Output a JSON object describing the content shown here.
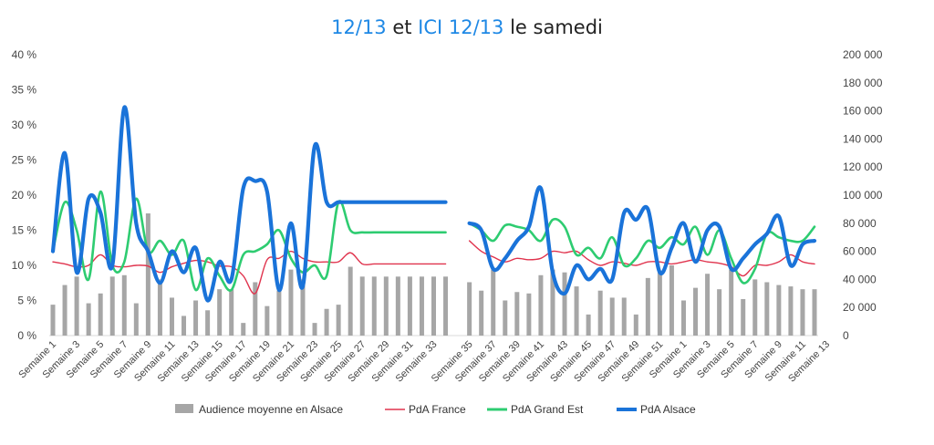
{
  "title": {
    "part1": "12/13",
    "part2": " et ",
    "part3": "ICI 12/13",
    "part4": " le samedi"
  },
  "chart_data": {
    "type": "bar+line",
    "title": "12/13 et ICI 12/13 le samedi",
    "y_left": {
      "ticks": [
        "0 %",
        "5 %",
        "10 %",
        "15 %",
        "20 %",
        "25 %",
        "30 %",
        "35 %",
        "40 %"
      ],
      "range": [
        0,
        40
      ]
    },
    "y_right": {
      "ticks": [
        "0",
        "20 000",
        "40 000",
        "60 000",
        "80 000",
        "100 000",
        "120 000",
        "140 000",
        "160 000",
        "180 000",
        "200 000"
      ],
      "range": [
        0,
        200000
      ]
    },
    "x_labels": [
      "Semaine 1",
      "Semaine 3",
      "Semaine 5",
      "Semaine 7",
      "Semaine 9",
      "Semaine 11",
      "Semaine 13",
      "Semaine 15",
      "Semaine 17",
      "Semaine 19",
      "Semaine 21",
      "Semaine 23",
      "Semaine 25",
      "Semaine 27",
      "Semaine 29",
      "Semaine 31",
      "Semaine 33",
      "Semaine 35",
      "Semaine 37",
      "Semaine 39",
      "Semaine 41",
      "Semaine 43",
      "Semaine 45",
      "Semaine 47",
      "Semaine 49",
      "Semaine 51",
      "Semaine 1",
      "Semaine 3",
      "Semaine 5",
      "Semaine 7",
      "Semaine 9",
      "Semaine 11",
      "Semaine 13"
    ],
    "n_points": 65,
    "series": [
      {
        "name": "Audience moyenne en Alsace",
        "kind": "bar",
        "axis": "right",
        "color": "#a6a6a6",
        "values": [
          22000,
          36000,
          42000,
          23000,
          30000,
          42000,
          43000,
          23000,
          87000,
          40000,
          27000,
          14000,
          25000,
          18000,
          33000,
          33000,
          9000,
          38000,
          21000,
          32000,
          47000,
          40000,
          9000,
          19000,
          22000,
          49000,
          42000,
          42000,
          42000,
          42000,
          42000,
          42000,
          42000,
          42000,
          null,
          38000,
          32000,
          47000,
          25000,
          31000,
          30000,
          43000,
          47000,
          45000,
          35000,
          15000,
          32000,
          27000,
          27000,
          15000,
          41000,
          45000,
          50000,
          25000,
          34000,
          44000,
          33000,
          47000,
          26000,
          40000,
          38000,
          36000,
          35000,
          33000,
          33000
        ]
      },
      {
        "name": "PdA France",
        "kind": "line",
        "axis": "left",
        "color": "#e0334d",
        "values": [
          10.5,
          10.2,
          9.8,
          10.0,
          11.5,
          10.0,
          9.8,
          10.0,
          9.9,
          9.0,
          9.8,
          10.3,
          10.7,
          10.5,
          9.9,
          9.8,
          8.5,
          6.0,
          10.8,
          11.0,
          12.0,
          11.0,
          10.5,
          10.5,
          10.5,
          11.8,
          10.2,
          10.2,
          10.2,
          10.2,
          10.2,
          10.2,
          10.2,
          10.2,
          null,
          13.5,
          12.0,
          11.2,
          10.5,
          11.0,
          10.8,
          11.0,
          12.0,
          11.8,
          12.0,
          10.8,
          10.0,
          10.5,
          10.3,
          10.0,
          10.5,
          10.5,
          10.2,
          10.5,
          10.8,
          10.5,
          10.3,
          9.8,
          8.5,
          10.0,
          10.0,
          10.5,
          11.5,
          10.5,
          10.2
        ]
      },
      {
        "name": "PdA Grand Est",
        "kind": "line",
        "axis": "left",
        "color": "#2ecc71",
        "values": [
          12.0,
          19.0,
          15.0,
          8.0,
          20.5,
          10.0,
          10.5,
          19.5,
          12.0,
          13.5,
          11.5,
          13.5,
          6.5,
          11.0,
          8.5,
          6.5,
          11.5,
          12.0,
          13.0,
          15.0,
          11.0,
          9.0,
          10.0,
          8.5,
          19.0,
          15.0,
          14.7,
          14.7,
          14.7,
          14.7,
          14.7,
          14.7,
          14.7,
          14.7,
          null,
          16.0,
          15.0,
          13.5,
          15.7,
          15.5,
          15.0,
          13.5,
          16.5,
          15.5,
          11.5,
          12.5,
          11.0,
          14.0,
          10.0,
          11.0,
          13.5,
          12.5,
          14.0,
          13.0,
          15.5,
          11.5,
          15.0,
          11.0,
          7.5,
          9.5,
          14.5,
          14.0,
          13.5,
          13.5,
          15.5
        ]
      },
      {
        "name": "PdA Alsace",
        "kind": "line",
        "axis": "left",
        "color": "#1a73d9",
        "values": [
          12.0,
          26.0,
          9.0,
          19.5,
          17.5,
          10.0,
          32.5,
          16.0,
          12.0,
          7.5,
          12.0,
          9.0,
          12.5,
          5.0,
          10.5,
          8.0,
          21.0,
          22.0,
          20.5,
          6.5,
          16.0,
          7.0,
          27.0,
          19.0,
          19.0,
          19.0,
          19.0,
          19.0,
          19.0,
          19.0,
          19.0,
          19.0,
          19.0,
          19.0,
          null,
          16.0,
          15.0,
          9.5,
          11.0,
          13.5,
          15.5,
          21.0,
          9.0,
          6.0,
          10.0,
          8.0,
          9.5,
          8.0,
          17.5,
          16.5,
          18.0,
          9.0,
          12.5,
          16.0,
          10.5,
          15.0,
          15.5,
          9.5,
          11.0,
          13.0,
          14.5,
          17.0,
          10.0,
          13.0,
          13.5
        ]
      }
    ],
    "legend_position": "bottom",
    "grid": false
  },
  "legend": [
    {
      "label": "Audience moyenne en Alsace",
      "color": "#a6a6a6",
      "kind": "bar"
    },
    {
      "label": "PdA France",
      "color": "#e0334d",
      "kind": "line"
    },
    {
      "label": "PdA Grand Est",
      "color": "#2ecc71",
      "kind": "line"
    },
    {
      "label": "PdA Alsace",
      "color": "#1a73d9",
      "kind": "line"
    }
  ]
}
